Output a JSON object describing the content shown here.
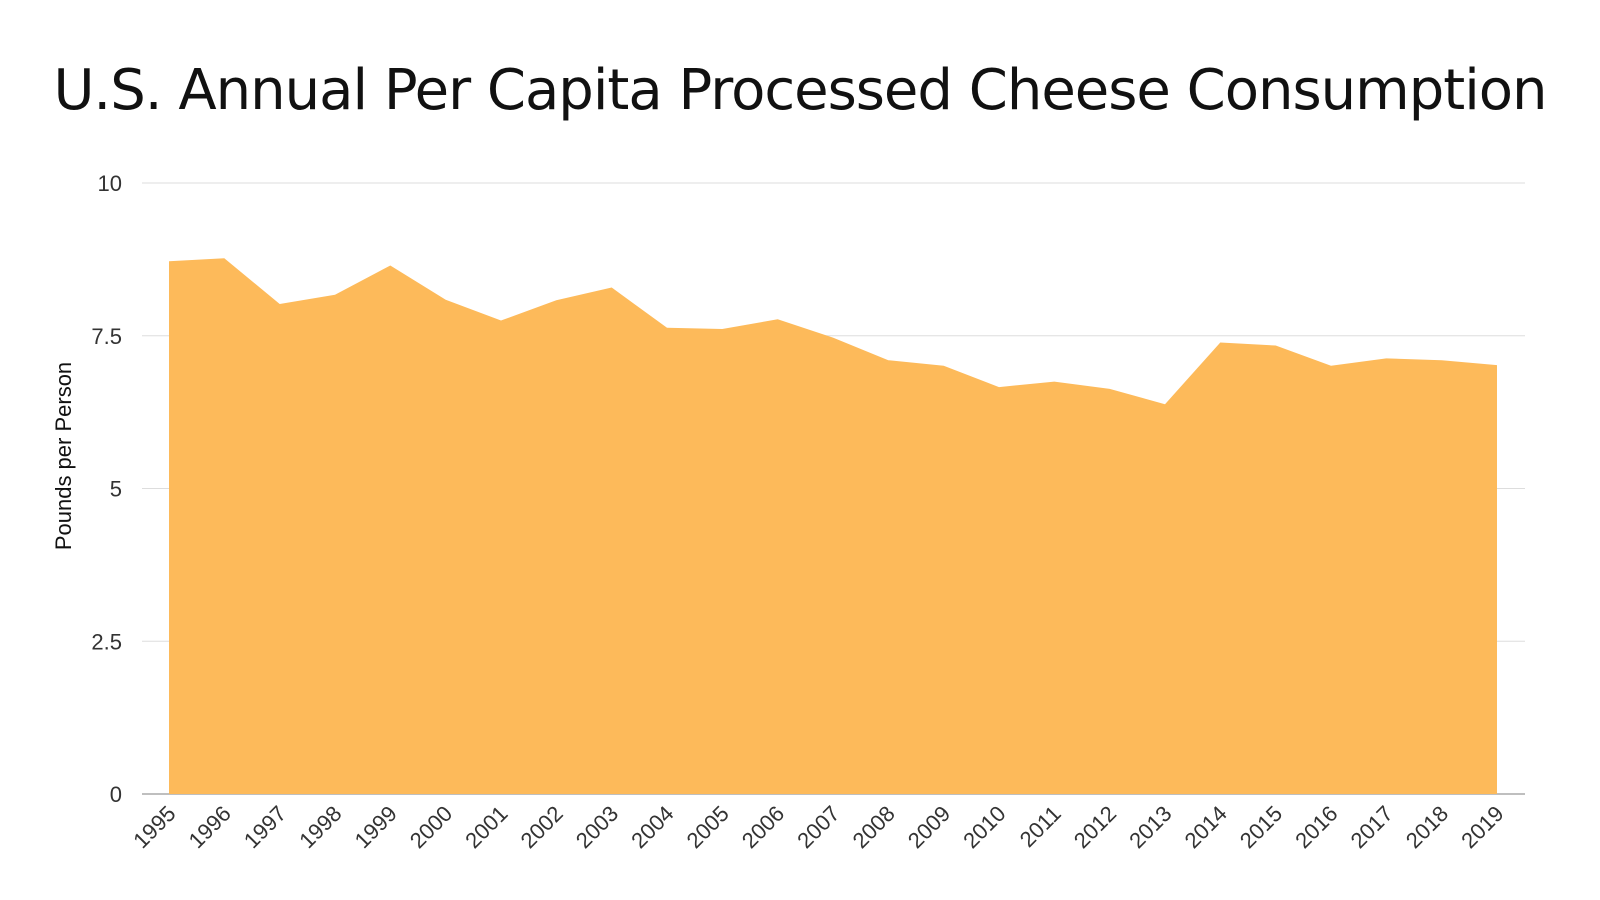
{
  "chart_data": {
    "type": "area",
    "title": "U.S. Annual Per Capita Processed Cheese Consumption",
    "xlabel": "",
    "ylabel": "Pounds per Person",
    "x": [
      "1995",
      "1996",
      "1997",
      "1998",
      "1999",
      "2000",
      "2001",
      "2002",
      "2003",
      "2004",
      "2005",
      "2006",
      "2007",
      "2008",
      "2009",
      "2010",
      "2011",
      "2012",
      "2013",
      "2014",
      "2015",
      "2016",
      "2017",
      "2018",
      "2019"
    ],
    "series": [
      {
        "values": [
          8.72,
          8.77,
          8.02,
          8.17,
          8.65,
          8.09,
          7.75,
          8.08,
          8.29,
          7.63,
          7.61,
          7.77,
          7.47,
          7.1,
          7.01,
          6.66,
          6.75,
          6.63,
          6.38,
          7.39,
          7.34,
          7.01,
          7.13,
          7.1,
          7.02
        ],
        "color": "#FDBA5A"
      }
    ],
    "ylim": [
      0,
      10
    ],
    "yticks": [
      "0",
      "2.5",
      "5",
      "7.5",
      "10"
    ],
    "ytick_values": [
      0,
      2.5,
      5,
      7.5,
      10
    ],
    "grid": true,
    "gridline_color": "#dddddd",
    "axis_color": "#aaaaaa"
  }
}
